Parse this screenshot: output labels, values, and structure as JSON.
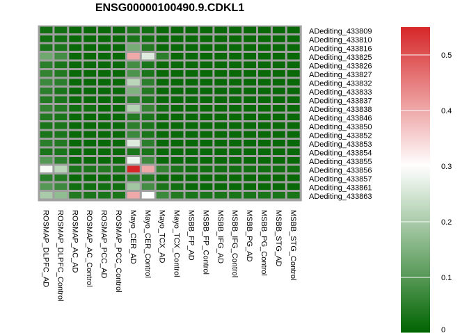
{
  "chart_data": {
    "type": "heatmap",
    "title": "ENSG00000100490.9.CDKL1",
    "columns": [
      "ROSMAP_DLPFC_AD",
      "ROSMAP_DLPFC_Control",
      "ROSMAP_AC_AD",
      "ROSMAP_AC_Control",
      "ROSMAP_PCC_AD",
      "ROSMAP_PCC_Control",
      "Mayo_CER_AD",
      "Mayo_CER_Control",
      "Mayo_TCX_AD",
      "Mayo_TCX_Control",
      "MSBB_FP_AD",
      "MSBB_FP_Control",
      "MSBB_IFG_AD",
      "MSBB_IFG_Control",
      "MSBB_PG_AD",
      "MSBB_PG_Control",
      "MSBB_STG_AD",
      "MSBB_STG_Control"
    ],
    "rows": [
      "ADediting_433809",
      "ADediting_433810",
      "ADediting_433816",
      "ADediting_433825",
      "ADediting_433826",
      "ADediting_433827",
      "ADediting_433832",
      "ADediting_433833",
      "ADediting_433837",
      "ADediting_433838",
      "ADediting_433846",
      "ADediting_433850",
      "ADediting_433852",
      "ADediting_433853",
      "ADediting_433854",
      "ADediting_433855",
      "ADediting_433856",
      "ADediting_433857",
      "ADediting_433861",
      "ADediting_433863"
    ],
    "values": [
      [
        0.02,
        0.02,
        0.01,
        0.01,
        0.01,
        0.01,
        0.03,
        0.02,
        0.01,
        0.01,
        0.01,
        0.01,
        0.01,
        0.01,
        0.01,
        0.01,
        0.01,
        0.01
      ],
      [
        0.02,
        0.02,
        0.01,
        0.01,
        0.01,
        0.01,
        0.03,
        0.02,
        0.01,
        0.01,
        0.01,
        0.01,
        0.01,
        0.01,
        0.01,
        0.01,
        0.01,
        0.01
      ],
      [
        0.03,
        0.03,
        0.01,
        0.01,
        0.01,
        0.01,
        0.14,
        0.04,
        0.01,
        0.01,
        0.01,
        0.01,
        0.01,
        0.01,
        0.01,
        0.01,
        0.01,
        0.01
      ],
      [
        0.13,
        0.08,
        0.01,
        0.01,
        0.01,
        0.01,
        0.4,
        0.26,
        0.05,
        0.01,
        0.01,
        0.01,
        0.01,
        0.01,
        0.01,
        0.01,
        0.01,
        0.01
      ],
      [
        0.05,
        0.03,
        0.01,
        0.01,
        0.01,
        0.01,
        0.08,
        0.03,
        0.01,
        0.01,
        0.01,
        0.01,
        0.01,
        0.01,
        0.01,
        0.01,
        0.01,
        0.01
      ],
      [
        0.06,
        0.04,
        0.01,
        0.01,
        0.01,
        0.01,
        0.09,
        0.03,
        0.01,
        0.01,
        0.01,
        0.01,
        0.01,
        0.01,
        0.01,
        0.01,
        0.01,
        0.01
      ],
      [
        0.07,
        0.05,
        0.01,
        0.01,
        0.01,
        0.01,
        0.22,
        0.05,
        0.01,
        0.01,
        0.01,
        0.01,
        0.01,
        0.01,
        0.01,
        0.01,
        0.01,
        0.01
      ],
      [
        0.05,
        0.03,
        0.01,
        0.01,
        0.01,
        0.01,
        0.15,
        0.04,
        0.01,
        0.01,
        0.01,
        0.01,
        0.01,
        0.01,
        0.01,
        0.01,
        0.01,
        0.01
      ],
      [
        0.04,
        0.03,
        0.01,
        0.01,
        0.01,
        0.01,
        0.05,
        0.03,
        0.01,
        0.01,
        0.01,
        0.01,
        0.01,
        0.01,
        0.01,
        0.01,
        0.01,
        0.01
      ],
      [
        0.06,
        0.04,
        0.02,
        0.02,
        0.01,
        0.01,
        0.21,
        0.06,
        0.02,
        0.01,
        0.01,
        0.01,
        0.01,
        0.01,
        0.01,
        0.01,
        0.01,
        0.01
      ],
      [
        0.04,
        0.03,
        0.01,
        0.01,
        0.01,
        0.01,
        0.04,
        0.03,
        0.01,
        0.01,
        0.01,
        0.01,
        0.01,
        0.01,
        0.01,
        0.01,
        0.01,
        0.01
      ],
      [
        0.03,
        0.03,
        0.01,
        0.01,
        0.01,
        0.01,
        0.05,
        0.03,
        0.01,
        0.01,
        0.01,
        0.01,
        0.01,
        0.01,
        0.01,
        0.01,
        0.01,
        0.01
      ],
      [
        0.03,
        0.03,
        0.01,
        0.01,
        0.01,
        0.01,
        0.07,
        0.03,
        0.01,
        0.01,
        0.01,
        0.01,
        0.01,
        0.01,
        0.01,
        0.01,
        0.01,
        0.01
      ],
      [
        0.05,
        0.04,
        0.01,
        0.01,
        0.01,
        0.01,
        0.26,
        0.05,
        0.01,
        0.01,
        0.01,
        0.01,
        0.01,
        0.01,
        0.01,
        0.01,
        0.01,
        0.01
      ],
      [
        0.03,
        0.03,
        0.01,
        0.01,
        0.01,
        0.01,
        0.03,
        0.03,
        0.01,
        0.01,
        0.01,
        0.01,
        0.01,
        0.01,
        0.01,
        0.01,
        0.01,
        0.01
      ],
      [
        0.1,
        0.05,
        0.01,
        0.01,
        0.01,
        0.01,
        0.28,
        0.07,
        0.01,
        0.01,
        0.01,
        0.01,
        0.01,
        0.01,
        0.01,
        0.01,
        0.01,
        0.01
      ],
      [
        0.29,
        0.22,
        0.03,
        0.03,
        0.04,
        0.03,
        0.55,
        0.4,
        0.06,
        0.03,
        0.02,
        0.02,
        0.02,
        0.02,
        0.02,
        0.02,
        0.02,
        0.02
      ],
      [
        0.05,
        0.04,
        0.01,
        0.01,
        0.01,
        0.01,
        0.05,
        0.04,
        0.01,
        0.01,
        0.01,
        0.01,
        0.01,
        0.01,
        0.01,
        0.01,
        0.01,
        0.01
      ],
      [
        0.1,
        0.07,
        0.02,
        0.02,
        0.02,
        0.02,
        0.19,
        0.08,
        0.03,
        0.02,
        0.01,
        0.01,
        0.01,
        0.01,
        0.01,
        0.01,
        0.01,
        0.01
      ],
      [
        0.2,
        0.17,
        0.04,
        0.03,
        0.03,
        0.03,
        0.4,
        0.3,
        0.07,
        0.04,
        0.03,
        0.03,
        0.03,
        0.03,
        0.03,
        0.03,
        0.03,
        0.03
      ]
    ],
    "colorbar": {
      "ticks": [
        0,
        0.1,
        0.2,
        0.3,
        0.4,
        0.5
      ],
      "tick_labels": [
        "0",
        "0.1",
        "0.2",
        "0.3",
        "0.4",
        "0.5"
      ],
      "range": [
        0,
        0.55
      ],
      "colors": {
        "low": "#006400",
        "mid": "#ffffff",
        "high": "#d62728"
      },
      "midpoint": 0.3
    }
  }
}
